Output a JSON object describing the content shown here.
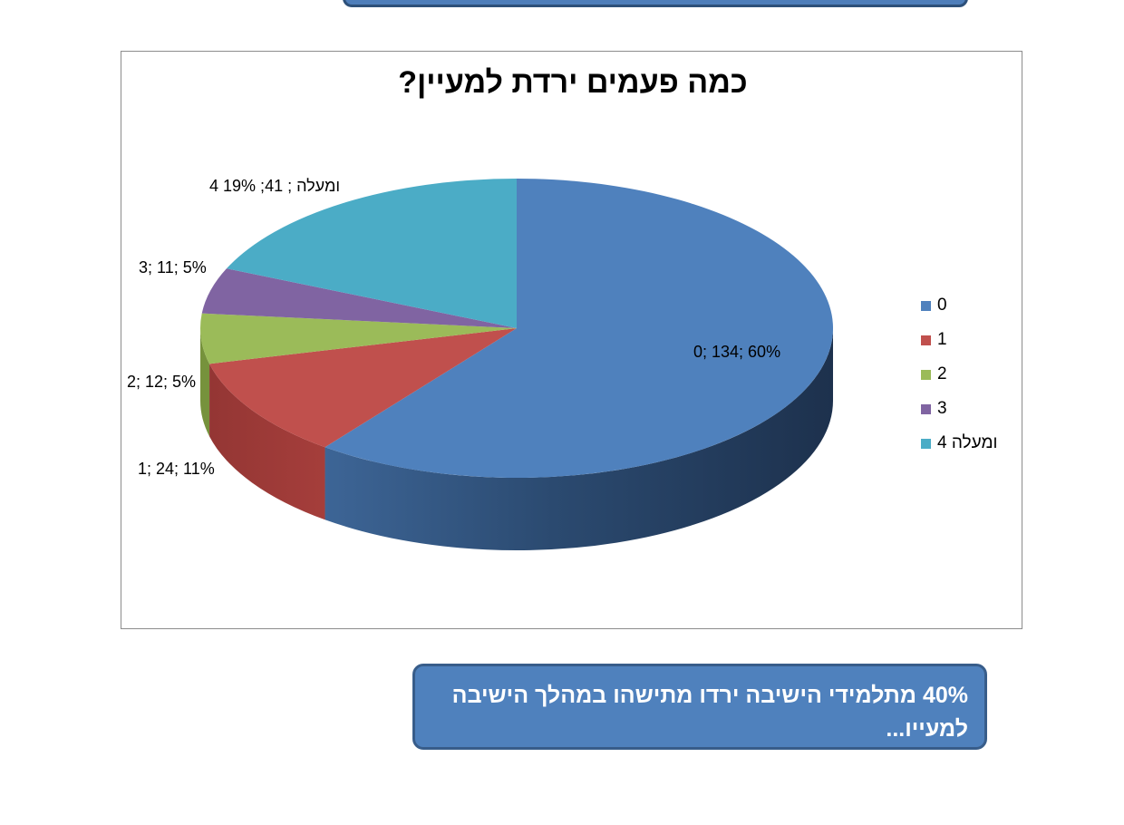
{
  "chart_data": {
    "type": "pie",
    "title": "כמה פעמים ירדת למעיין?",
    "categories": [
      "0",
      "1",
      "2",
      "3",
      "4 ומעלה"
    ],
    "values": [
      134,
      24,
      12,
      11,
      41
    ],
    "percentages": [
      60,
      11,
      5,
      5,
      19
    ],
    "colors": [
      "#4f81bd",
      "#c0504d",
      "#9bbb59",
      "#8064a2",
      "#4bacc6"
    ],
    "data_labels": [
      "0; 134; 60%",
      "1; 24; 11%",
      "2; 12; 5%",
      "3; 11; 5%",
      "4 ומעלה ; 41; 19%"
    ],
    "legend_position": "right",
    "style": "3d"
  },
  "callout": {
    "text": "40% מתלמידי הישיבה ירדו מתישהו במהלך הישיבה למעייו..."
  }
}
